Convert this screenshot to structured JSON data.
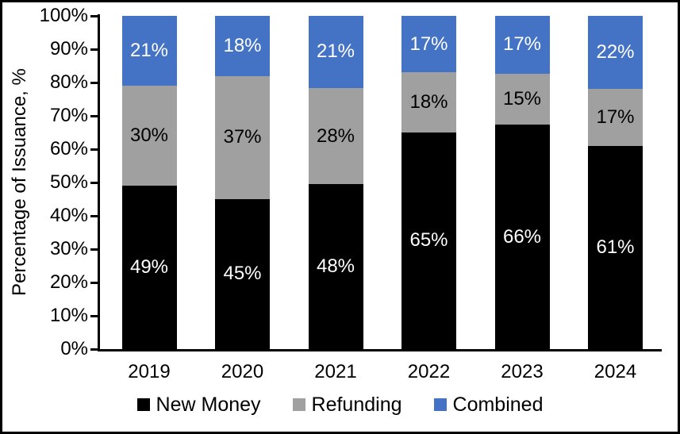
{
  "chart_data": {
    "type": "bar",
    "stacked": true,
    "title": "",
    "xlabel": "",
    "ylabel": "Percentage of Issuance, %",
    "categories": [
      "2019",
      "2020",
      "2021",
      "2022",
      "2023",
      "2024"
    ],
    "series": [
      {
        "name": "New Money",
        "color": "#000000",
        "label_color": "#ffffff",
        "values": [
          49,
          45,
          48,
          65,
          66,
          61
        ]
      },
      {
        "name": "Refunding",
        "color": "#a0a0a0",
        "label_color": "#000000",
        "values": [
          30,
          37,
          28,
          18,
          15,
          17
        ]
      },
      {
        "name": "Combined",
        "color": "#4472c4",
        "label_color": "#ffffff",
        "values": [
          21,
          18,
          21,
          17,
          17,
          22
        ]
      }
    ],
    "data_label_suffix": "%",
    "y_axis": {
      "min": 0,
      "max": 100,
      "step": 10,
      "tick_labels": [
        "0%",
        "10%",
        "20%",
        "30%",
        "40%",
        "50%",
        "60%",
        "70%",
        "80%",
        "90%",
        "100%"
      ]
    },
    "legend_position": "bottom",
    "grid": false,
    "axis_color": "#000000",
    "background_color": "#ffffff"
  }
}
